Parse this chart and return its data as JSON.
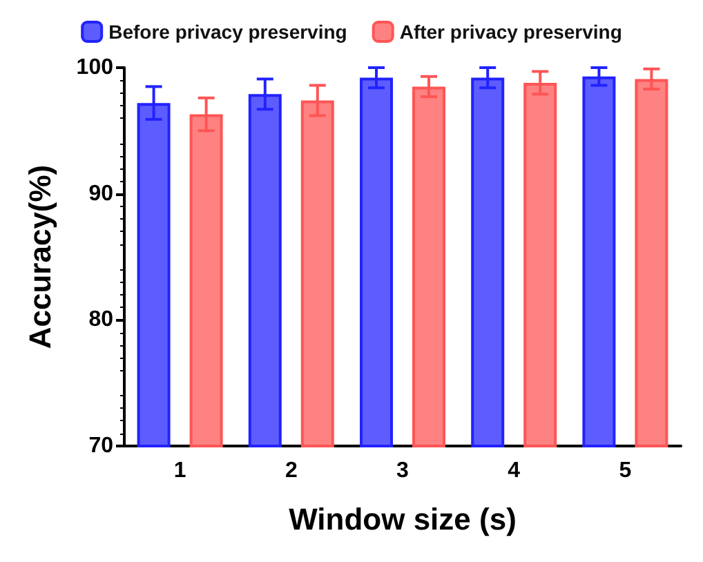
{
  "chart_data": {
    "type": "bar",
    "xlabel": "Window size (s)",
    "ylabel": "Accuracy(%)",
    "categories": [
      "1",
      "2",
      "3",
      "4",
      "5"
    ],
    "series": [
      {
        "name": "Before privacy preserving",
        "color": "#2222ff",
        "values": [
          97.2,
          97.9,
          99.2,
          99.2,
          99.3
        ],
        "errors": [
          1.3,
          1.2,
          0.8,
          0.8,
          0.7
        ]
      },
      {
        "name": "After privacy preserving",
        "color": "#ff5555",
        "values": [
          96.3,
          97.4,
          98.5,
          98.8,
          99.1
        ],
        "errors": [
          1.3,
          1.2,
          0.8,
          0.9,
          0.8
        ]
      }
    ],
    "ylim": [
      70,
      100
    ],
    "yticks": [
      70,
      80,
      90,
      100
    ],
    "grid": false,
    "legend": "top"
  }
}
